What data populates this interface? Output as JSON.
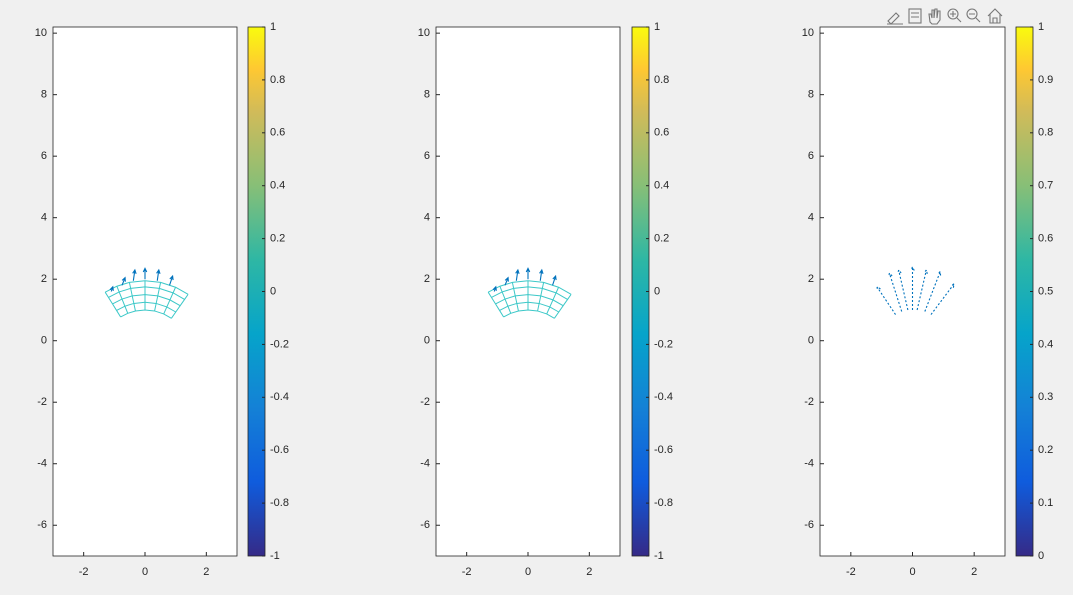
{
  "chart_data": [
    {
      "type": "quiver",
      "xlim": [
        -3,
        3
      ],
      "ylim": [
        -7,
        10.2
      ],
      "xticks": [
        -2,
        0,
        2
      ],
      "yticks": [
        -6,
        -4,
        -2,
        0,
        2,
        4,
        6,
        8,
        10
      ],
      "mesh": {
        "center": [
          0,
          -0.5
        ],
        "radii": [
          1.5,
          1.75,
          2.0,
          2.25,
          2.45
        ],
        "angles": [
          122,
          112,
          102,
          90,
          78,
          66,
          55
        ],
        "color": "#3cc8c8"
      },
      "arrows": {
        "x": [
          -1.1,
          -0.75,
          -0.38,
          0,
          0.4,
          0.8
        ],
        "y": [
          1.6,
          1.8,
          1.95,
          2.0,
          1.95,
          1.8
        ],
        "u": [
          0.05,
          0.1,
          0.05,
          0,
          0.05,
          0.1
        ],
        "v": [
          0.15,
          0.25,
          0.35,
          0.35,
          0.35,
          0.3
        ],
        "color": "#0072bd",
        "dotted": false
      },
      "colorbar": {
        "lim": [
          -1,
          1
        ],
        "ticks": [
          -1,
          -0.8,
          -0.6,
          -0.4,
          -0.2,
          0,
          0.2,
          0.4,
          0.6,
          0.8,
          1
        ]
      }
    },
    {
      "type": "quiver",
      "xlim": [
        -3,
        3
      ],
      "ylim": [
        -7,
        10.2
      ],
      "xticks": [
        -2,
        0,
        2
      ],
      "yticks": [
        -6,
        -4,
        -2,
        0,
        2,
        4,
        6,
        8,
        10
      ],
      "mesh": {
        "center": [
          0,
          -0.5
        ],
        "radii": [
          1.5,
          1.75,
          2.0,
          2.25,
          2.45
        ],
        "angles": [
          122,
          112,
          102,
          90,
          78,
          66,
          55
        ],
        "color": "#3cc8c8"
      },
      "arrows": {
        "x": [
          -1.1,
          -0.75,
          -0.38,
          0,
          0.4,
          0.8
        ],
        "y": [
          1.6,
          1.8,
          1.95,
          2.0,
          1.95,
          1.8
        ],
        "u": [
          0.05,
          0.1,
          0.05,
          0,
          0.05,
          0.1
        ],
        "v": [
          0.15,
          0.25,
          0.35,
          0.35,
          0.35,
          0.3
        ],
        "color": "#0072bd",
        "dotted": false
      },
      "colorbar": {
        "lim": [
          -1,
          1
        ],
        "ticks": [
          -1,
          -0.8,
          -0.6,
          -0.4,
          -0.2,
          0,
          0.2,
          0.4,
          0.6,
          0.8,
          1
        ]
      }
    },
    {
      "type": "quiver",
      "xlim": [
        -3,
        3
      ],
      "ylim": [
        -7,
        10.2
      ],
      "xticks": [
        -2,
        0,
        2
      ],
      "yticks": [
        -6,
        -4,
        -2,
        0,
        2,
        4,
        6,
        8,
        10
      ],
      "arrows": {
        "x": [
          -0.55,
          -0.35,
          -0.15,
          0,
          0.15,
          0.4,
          0.6
        ],
        "y": [
          0.85,
          0.95,
          1.0,
          1.0,
          1.0,
          0.95,
          0.85
        ],
        "u": [
          -0.6,
          -0.4,
          -0.3,
          0,
          0.3,
          0.5,
          0.75
        ],
        "v": [
          0.9,
          1.25,
          1.3,
          1.4,
          1.3,
          1.3,
          1.0
        ],
        "color": "#0072bd",
        "dotted": true
      },
      "colorbar": {
        "lim": [
          0,
          1
        ],
        "ticks": [
          0,
          0.1,
          0.2,
          0.3,
          0.4,
          0.5,
          0.6,
          0.7,
          0.8,
          0.9,
          1
        ]
      }
    }
  ]
}
